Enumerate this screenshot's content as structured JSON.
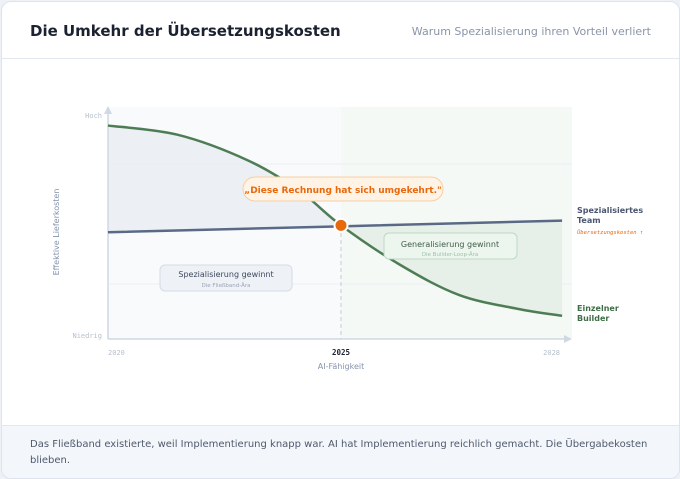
{
  "header": {
    "title": "Die Umkehr der Übersetzungskosten",
    "subtitle": "Warum Spezialisierung ihren Vorteil verliert"
  },
  "footer": {
    "text": "Das Fließband existierte, weil Implementierung knapp war. AI hat Implementierung reichlich gemacht. Die Übergabekosten blieben."
  },
  "chart_data": {
    "type": "line",
    "xlabel": "AI-Fähigkeit",
    "ylabel": "Effektive Lieferkosten",
    "x_ticks": [
      "2020",
      "2025",
      "2028"
    ],
    "y_ticks": [
      "Niedrig",
      "Hoch"
    ],
    "series": [
      {
        "name": "Spezialisiertes Team",
        "note": "Übersetzungskosten ↑",
        "color": "#5a6a86",
        "x": [
          2020,
          2028
        ],
        "y": [
          46,
          51
        ]
      },
      {
        "name": "Einzelner Builder",
        "color": "#4e7d55",
        "x": [
          2020,
          2021.5,
          2023,
          2024.1,
          2025,
          2025.8,
          2026.6,
          2027.4,
          2028
        ],
        "y": [
          92,
          88,
          77,
          64,
          49,
          32,
          19,
          13,
          10
        ]
      }
    ],
    "crossover": {
      "x": 2025,
      "y": 49,
      "color": "#e8680c"
    },
    "annotations": {
      "callout": "„Diese Rechnung hat sich umgekehrt.\"",
      "left_region": {
        "title": "Spezialisierung gewinnt",
        "subtitle": "Die Fließband-Ära"
      },
      "right_region": {
        "title": "Generalisierung gewinnt",
        "subtitle": "Die Builder-Loop-Ära"
      }
    },
    "grid": true
  }
}
